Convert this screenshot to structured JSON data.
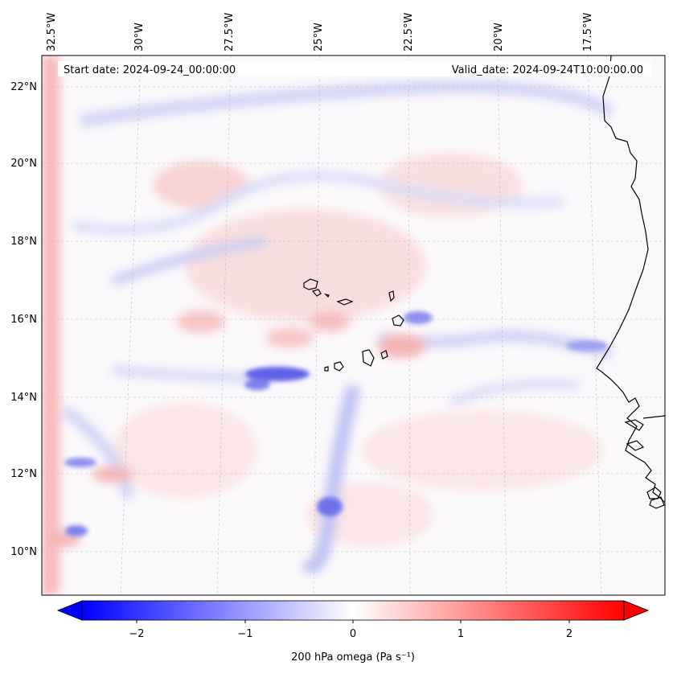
{
  "header": {
    "start_date": "Start date: 2024-09-24_00:00:00",
    "valid_date": "Valid_date: 2024-09-24T10:00:00.00"
  },
  "map": {
    "longitude_labels": [
      "32.5°W",
      "30°W",
      "27.5°W",
      "25°W",
      "22.5°W",
      "20°W",
      "17.5°W"
    ],
    "latitude_labels": [
      "22°N",
      "20°N",
      "18°N",
      "16°N",
      "14°N",
      "12°N",
      "10°N"
    ],
    "gridlines": "dashed",
    "coastline_color": "#000000"
  },
  "colorbar": {
    "label": "200 hPa omega (Pa s⁻¹)",
    "tick_labels": [
      "−2",
      "−1",
      "0",
      "1",
      "2"
    ],
    "tick_values": [
      -2,
      -1,
      0,
      1,
      2
    ],
    "range": [
      -2.6,
      2.6
    ],
    "colormap": "bwr",
    "low_color": "#0000ff",
    "mid_color": "#ffffff",
    "high_color": "#ff0000",
    "extend": "both"
  }
}
